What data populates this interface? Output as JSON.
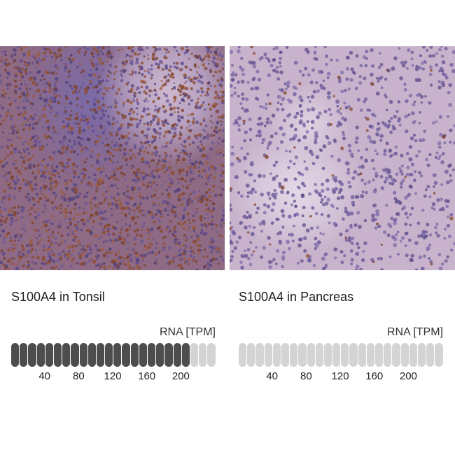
{
  "panels": [
    {
      "caption": "S100A4 in Tonsil",
      "rna_label": "RNA [TPM]",
      "segments_total": 24,
      "segments_filled": 21,
      "ticks": [
        "40",
        "80",
        "120",
        "160",
        "200"
      ],
      "fill_color": "#4d4d4d",
      "empty_color": "#d4d4d4"
    },
    {
      "caption": "S100A4 in Pancreas",
      "rna_label": "RNA [TPM]",
      "segments_total": 24,
      "segments_filled": 0,
      "ticks": [
        "40",
        "80",
        "120",
        "160",
        "200"
      ],
      "fill_color": "#4d4d4d",
      "empty_color": "#d4d4d4"
    }
  ]
}
